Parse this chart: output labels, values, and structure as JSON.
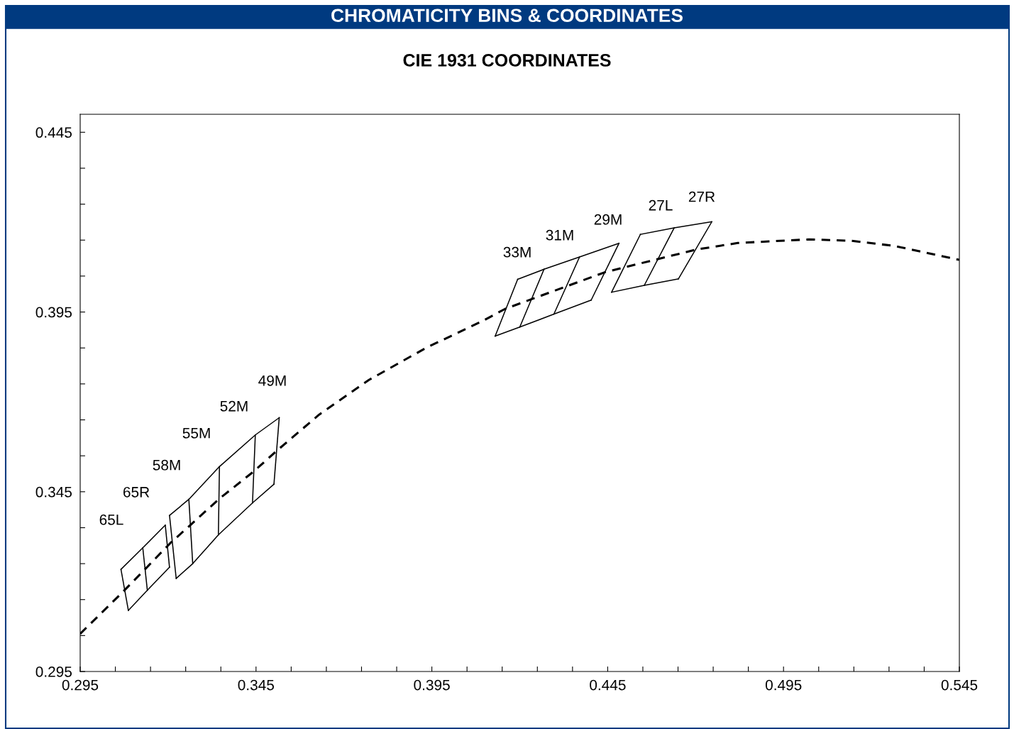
{
  "chart_data": {
    "type": "line",
    "title": "CHROMATICITY BINS & COORDINATES",
    "subtitle": "CIE 1931 COORDINATES",
    "xlim": [
      0.295,
      0.545
    ],
    "ylim": [
      0.295,
      0.45
    ],
    "xticks": [
      0.295,
      {
        "value": 0.305,
        "label": null
      },
      {
        "value": 0.315,
        "label": null
      },
      {
        "value": 0.325,
        "label": null
      },
      {
        "value": 0.335,
        "label": null
      },
      0.345,
      {
        "value": 0.355,
        "label": null
      },
      {
        "value": 0.365,
        "label": null
      },
      {
        "value": 0.375,
        "label": null
      },
      {
        "value": 0.385,
        "label": null
      },
      0.395,
      {
        "value": 0.405,
        "label": null
      },
      {
        "value": 0.415,
        "label": null
      },
      {
        "value": 0.425,
        "label": null
      },
      {
        "value": 0.435,
        "label": null
      },
      0.445,
      {
        "value": 0.455,
        "label": null
      },
      {
        "value": 0.465,
        "label": null
      },
      {
        "value": 0.475,
        "label": null
      },
      {
        "value": 0.485,
        "label": null
      },
      0.495,
      {
        "value": 0.505,
        "label": null
      },
      {
        "value": 0.515,
        "label": null
      },
      {
        "value": 0.525,
        "label": null
      },
      {
        "value": 0.535,
        "label": null
      },
      0.545
    ],
    "yticks": [
      0.295,
      {
        "value": 0.305,
        "label": null
      },
      {
        "value": 0.315,
        "label": null
      },
      {
        "value": 0.325,
        "label": null
      },
      {
        "value": 0.335,
        "label": null
      },
      0.345,
      {
        "value": 0.355,
        "label": null
      },
      {
        "value": 0.365,
        "label": null
      },
      {
        "value": 0.375,
        "label": null
      },
      {
        "value": 0.385,
        "label": null
      },
      0.395,
      {
        "value": 0.405,
        "label": null
      },
      {
        "value": 0.415,
        "label": null
      },
      {
        "value": 0.425,
        "label": null
      },
      {
        "value": 0.435,
        "label": null
      },
      0.445
    ],
    "marker": "none",
    "series": [
      {
        "line_style": "dashed",
        "color": "#000000",
        "x": [
          0.295,
          0.3069,
          0.3132,
          0.3206,
          0.3263,
          0.3345,
          0.3444,
          0.3509,
          0.363,
          0.3771,
          0.3933,
          0.4094,
          0.4159,
          0.4443,
          0.4703,
          0.482,
          0.5022,
          0.5143,
          0.5264,
          0.545
        ],
        "values": [
          0.3055,
          0.3169,
          0.3232,
          0.3307,
          0.3357,
          0.343,
          0.3507,
          0.3564,
          0.3665,
          0.3761,
          0.385,
          0.3925,
          0.3959,
          0.4061,
          0.4124,
          0.4142,
          0.4152,
          0.4148,
          0.4134,
          0.4095
        ]
      },
      {
        "line_style": "solid",
        "color": "#000000",
        "x": [
          0.3066,
          0.3128,
          0.3192
        ],
        "values": [
          0.3234,
          0.3294,
          0.3357
        ]
      },
      {
        "line_style": "solid",
        "color": "#000000",
        "x": [
          0.3087,
          0.3141,
          0.3204
        ],
        "values": [
          0.312,
          0.3176,
          0.324
        ]
      },
      {
        "line_style": "solid",
        "color": "#000000",
        "x": [
          0.3066,
          0.3087
        ],
        "values": [
          0.3234,
          0.312
        ]
      },
      {
        "line_style": "solid",
        "color": "#000000",
        "x": [
          0.3128,
          0.3141
        ],
        "values": [
          0.3294,
          0.3176
        ]
      },
      {
        "line_style": "solid",
        "color": "#000000",
        "x": [
          0.3192,
          0.3204
        ],
        "values": [
          0.3357,
          0.324
        ]
      },
      {
        "line_style": "solid",
        "color": "#000000",
        "x": [
          0.3204,
          0.3259,
          0.3346,
          0.3448,
          0.3516
        ],
        "values": [
          0.3384,
          0.3429,
          0.352,
          0.3608,
          0.3656
        ]
      },
      {
        "line_style": "solid",
        "color": "#000000",
        "x": [
          0.3223,
          0.327,
          0.3343,
          0.344,
          0.3501
        ],
        "values": [
          0.3209,
          0.325,
          0.333,
          0.3419,
          0.3471
        ]
      },
      {
        "line_style": "solid",
        "color": "#000000",
        "x": [
          0.3204,
          0.3223
        ],
        "values": [
          0.3384,
          0.3209
        ]
      },
      {
        "line_style": "solid",
        "color": "#000000",
        "x": [
          0.3259,
          0.327
        ],
        "values": [
          0.3429,
          0.325
        ]
      },
      {
        "line_style": "solid",
        "color": "#000000",
        "x": [
          0.3346,
          0.3343
        ],
        "values": [
          0.352,
          0.333
        ]
      },
      {
        "line_style": "solid",
        "color": "#000000",
        "x": [
          0.3448,
          0.344
        ],
        "values": [
          0.3608,
          0.3419
        ]
      },
      {
        "line_style": "solid",
        "color": "#000000",
        "x": [
          0.3516,
          0.3501
        ],
        "values": [
          0.3656,
          0.3471
        ]
      },
      {
        "line_style": "solid",
        "color": "#000000",
        "x": [
          0.4194,
          0.4269,
          0.437,
          0.4482
        ],
        "values": [
          0.4041,
          0.4069,
          0.4103,
          0.4141
        ]
      },
      {
        "line_style": "solid",
        "color": "#000000",
        "x": [
          0.413,
          0.42,
          0.4297,
          0.4403
        ],
        "values": [
          0.3883,
          0.3908,
          0.3944,
          0.3983
        ]
      },
      {
        "line_style": "solid",
        "color": "#000000",
        "x": [
          0.4194,
          0.413
        ],
        "values": [
          0.4041,
          0.3883
        ]
      },
      {
        "line_style": "solid",
        "color": "#000000",
        "x": [
          0.4269,
          0.42
        ],
        "values": [
          0.4069,
          0.3908
        ]
      },
      {
        "line_style": "solid",
        "color": "#000000",
        "x": [
          0.437,
          0.4297
        ],
        "values": [
          0.4103,
          0.3944
        ]
      },
      {
        "line_style": "solid",
        "color": "#000000",
        "x": [
          0.4482,
          0.4403
        ],
        "values": [
          0.4141,
          0.3983
        ]
      },
      {
        "line_style": "solid",
        "color": "#000000",
        "x": [
          0.4543,
          0.4639,
          0.4746
        ],
        "values": [
          0.4166,
          0.4184,
          0.4201
        ]
      },
      {
        "line_style": "solid",
        "color": "#000000",
        "x": [
          0.4461,
          0.4554,
          0.4651
        ],
        "values": [
          0.4005,
          0.4024,
          0.4042
        ]
      },
      {
        "line_style": "solid",
        "color": "#000000",
        "x": [
          0.4543,
          0.4461
        ],
        "values": [
          0.4166,
          0.4005
        ]
      },
      {
        "line_style": "solid",
        "color": "#000000",
        "x": [
          0.4639,
          0.4554
        ],
        "values": [
          0.4184,
          0.4024
        ]
      },
      {
        "line_style": "solid",
        "color": "#000000",
        "x": [
          0.4746,
          0.4651
        ],
        "values": [
          0.4201,
          0.4042
        ]
      }
    ],
    "annotations": [
      "65L",
      "65R",
      "58M",
      "55M",
      "52M",
      "49M",
      "33M",
      "31M",
      "29M",
      "27L",
      "27R"
    ]
  }
}
